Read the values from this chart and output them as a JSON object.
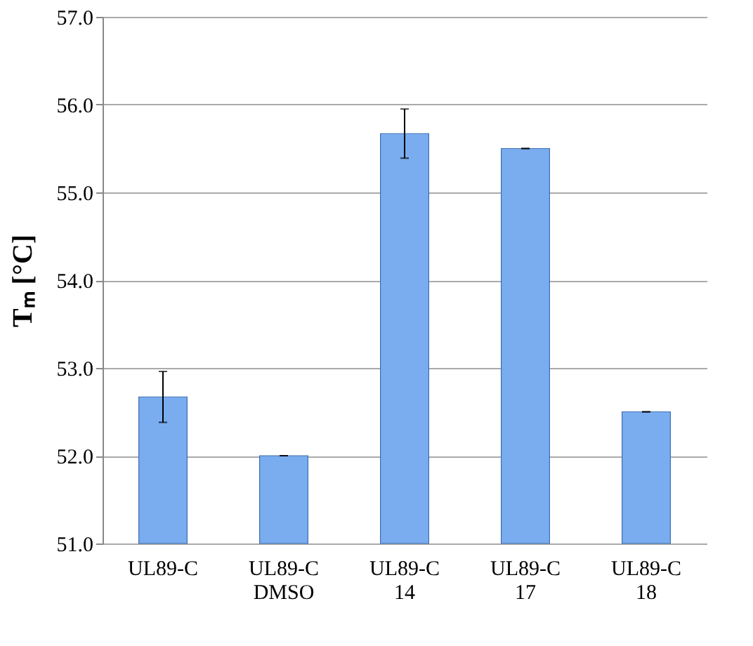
{
  "chart_data": {
    "type": "bar",
    "ylabel": "Tₘ [°C]",
    "categories": [
      "UL89-C",
      "UL89-C\nDMSO",
      "UL89-C\n14",
      "UL89-C\n17",
      "UL89-C\n18"
    ],
    "values": [
      52.67,
      52.0,
      55.67,
      55.5,
      52.5
    ],
    "errors": [
      0.29,
      0,
      0.28,
      0,
      0
    ],
    "color": "#7aacf0",
    "ylim": [
      51.0,
      57.0
    ],
    "yticks": [
      {
        "value": 51,
        "label": "51.0"
      },
      {
        "value": 52,
        "label": "52.0"
      },
      {
        "value": 53,
        "label": "53.0"
      },
      {
        "value": 54,
        "label": "54.0"
      },
      {
        "value": 55,
        "label": "55.0"
      },
      {
        "value": 56,
        "label": "56.0"
      },
      {
        "value": 57,
        "label": "57.0"
      }
    ],
    "grid": "y"
  }
}
